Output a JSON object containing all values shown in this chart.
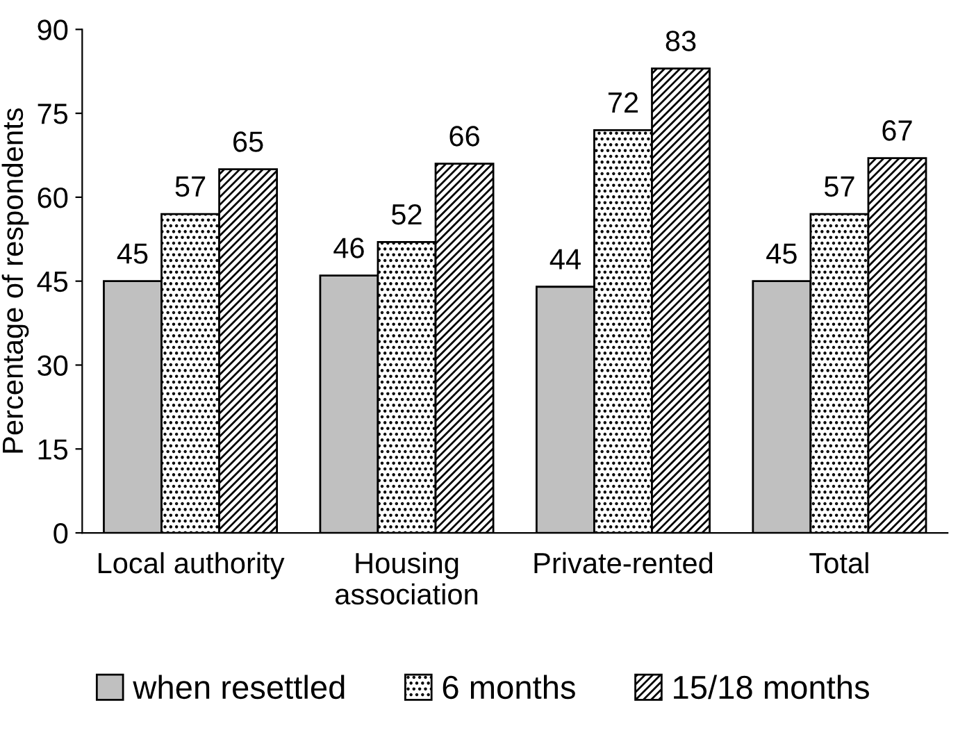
{
  "chart_data": {
    "type": "bar",
    "ylabel": "Percentage of respondents",
    "categories": [
      "Local authority",
      "Housing\nassociation",
      "Private-rented",
      "Total"
    ],
    "series": [
      {
        "name": "when resettled",
        "color": "#c0c0c0",
        "values": [
          45,
          46,
          44,
          45
        ]
      },
      {
        "name": "6 months",
        "color": "#000000",
        "values": [
          57,
          52,
          72,
          57
        ]
      },
      {
        "name": "15/18 months",
        "color": "#000000",
        "values": [
          65,
          66,
          83,
          67
        ]
      }
    ],
    "ylim": [
      0,
      90
    ],
    "yticks": [
      0,
      15,
      30,
      45,
      60,
      75,
      90
    ],
    "grid": false,
    "legend": "bottom",
    "data_labels": true
  }
}
